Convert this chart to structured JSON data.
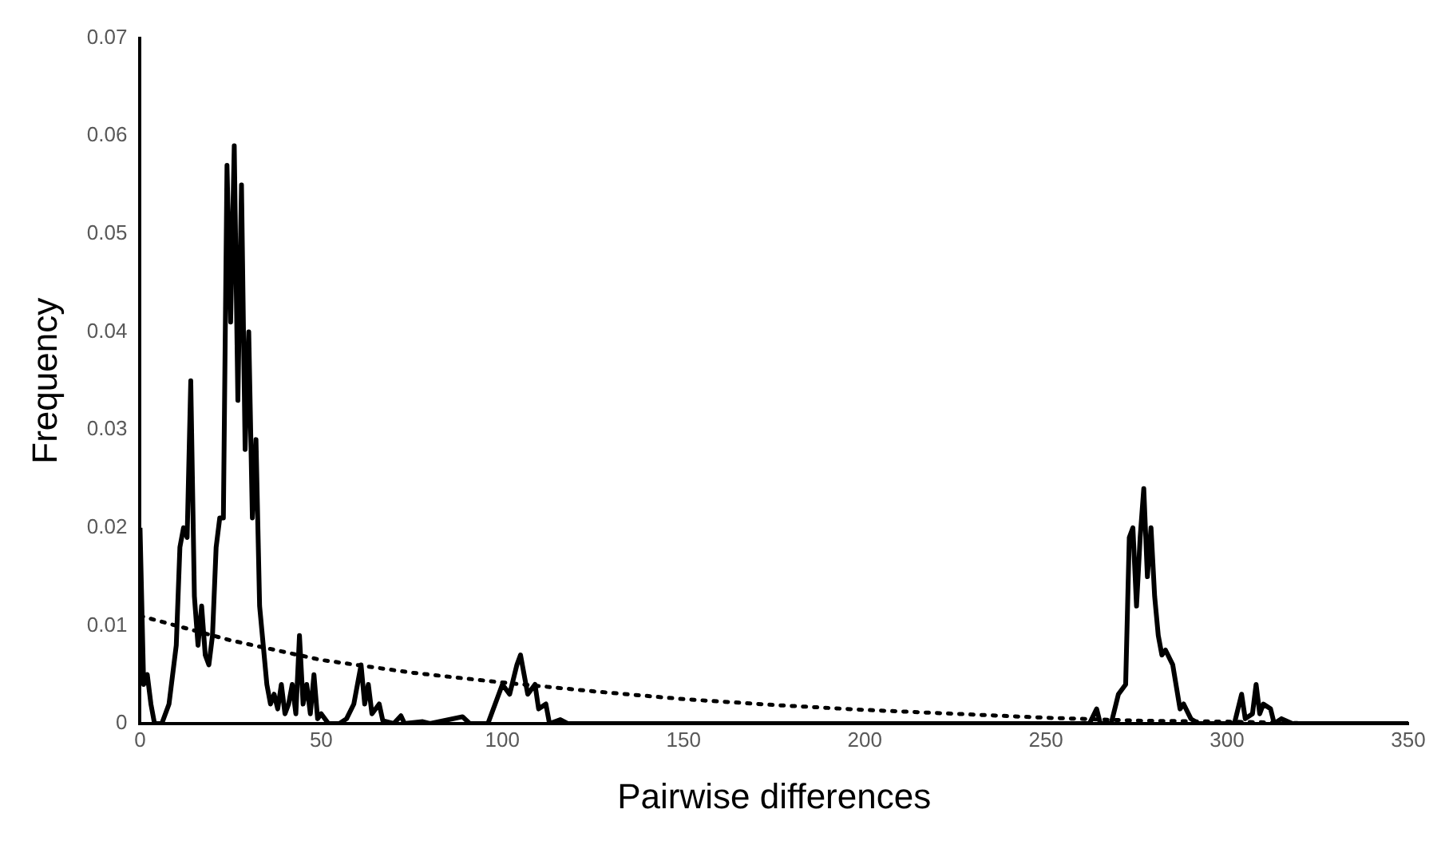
{
  "chart_data": {
    "type": "line",
    "xlabel": "Pairwise differences",
    "ylabel": "Frequency",
    "xlim": [
      0,
      350
    ],
    "xticks": [
      0,
      50,
      100,
      150,
      200,
      250,
      300,
      350
    ],
    "ylim": [
      0,
      0.07
    ],
    "yticks": [
      0,
      0.01,
      0.02,
      0.03,
      0.04,
      0.05,
      0.06,
      0.07
    ],
    "grid": false,
    "legend": false,
    "marker": "none",
    "series": [
      {
        "color": "#000000",
        "line_style": "solid",
        "x": [
          0,
          1,
          2,
          3,
          4,
          6,
          8,
          10,
          11,
          12,
          13,
          14,
          15,
          16,
          17,
          18,
          19,
          20,
          21,
          22,
          23,
          24,
          25,
          26,
          27,
          28,
          29,
          30,
          31,
          32,
          33,
          34,
          35,
          36,
          37,
          38,
          39,
          40,
          41,
          42,
          43,
          44,
          45,
          46,
          47,
          48,
          49,
          50,
          52,
          55,
          57,
          59,
          61,
          62,
          63,
          64,
          66,
          67,
          70,
          72,
          73,
          78,
          80,
          89,
          91,
          96,
          98,
          100,
          102,
          104,
          105,
          106,
          107,
          109,
          110,
          112,
          113,
          116,
          118,
          120,
          260,
          262,
          264,
          265,
          268,
          270,
          272,
          273,
          274,
          275,
          276,
          277,
          278,
          279,
          280,
          281,
          282,
          283,
          285,
          287,
          288,
          290,
          292,
          300,
          302,
          304,
          305,
          307,
          308,
          309,
          310,
          312,
          313,
          315,
          318,
          350
        ],
        "values": [
          0.02,
          0.004,
          0.005,
          0.002,
          0,
          0,
          0.002,
          0.008,
          0.018,
          0.02,
          0.019,
          0.035,
          0.013,
          0.008,
          0.012,
          0.007,
          0.006,
          0.009,
          0.018,
          0.021,
          0.021,
          0.057,
          0.041,
          0.059,
          0.033,
          0.055,
          0.028,
          0.04,
          0.021,
          0.029,
          0.012,
          0.008,
          0.004,
          0.002,
          0.003,
          0.0015,
          0.004,
          0.001,
          0.002,
          0.004,
          0.001,
          0.009,
          0.002,
          0.004,
          0.001,
          0.005,
          0.0005,
          0.001,
          0,
          0,
          0.0005,
          0.002,
          0.006,
          0.002,
          0.004,
          0.001,
          0.002,
          0.0003,
          0,
          0.0008,
          0,
          0.0002,
          0,
          0.0007,
          0,
          0,
          0.002,
          0.004,
          0.003,
          0.006,
          0.007,
          0.005,
          0.003,
          0.004,
          0.0015,
          0.002,
          0,
          0.0004,
          0,
          0,
          0,
          0,
          0.0015,
          0,
          0,
          0.003,
          0.004,
          0.019,
          0.02,
          0.012,
          0.019,
          0.024,
          0.015,
          0.02,
          0.013,
          0.009,
          0.007,
          0.0075,
          0.006,
          0.0015,
          0.002,
          0.0005,
          0,
          0,
          0,
          0.003,
          0.0005,
          0.001,
          0.004,
          0.001,
          0.002,
          0.0015,
          0,
          0.0005,
          0,
          0
        ]
      },
      {
        "color": "#000000",
        "line_style": "dotted",
        "x": [
          0,
          25,
          50,
          75,
          100,
          125,
          150,
          175,
          200,
          225,
          250,
          275,
          300,
          328
        ],
        "values": [
          0.011,
          0.0085,
          0.0065,
          0.0052,
          0.0042,
          0.0033,
          0.0025,
          0.0019,
          0.0014,
          0.001,
          0.0006,
          0.0003,
          0.0002,
          0
        ]
      }
    ]
  }
}
